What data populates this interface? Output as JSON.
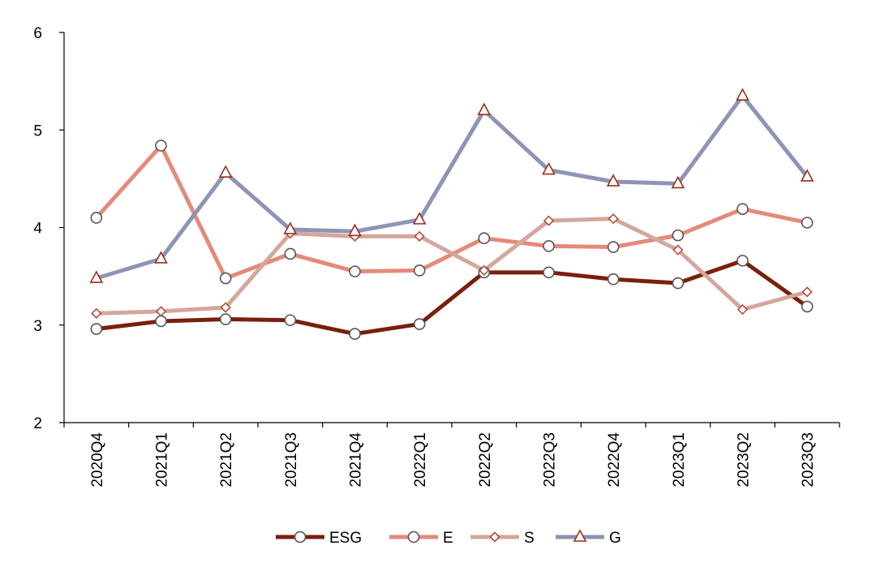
{
  "chart_data": {
    "type": "line",
    "title": "",
    "xlabel": "",
    "ylabel": "",
    "ylim": [
      2,
      6
    ],
    "yticks": [
      2,
      3,
      4,
      5,
      6
    ],
    "grid": false,
    "legend_position": "bottom",
    "categories": [
      "2020Q4",
      "2021Q1",
      "2021Q2",
      "2021Q3",
      "2021Q4",
      "2022Q1",
      "2022Q2",
      "2022Q3",
      "2022Q4",
      "2023Q1",
      "2023Q2",
      "2023Q3"
    ],
    "series": [
      {
        "name": "ESG",
        "color": "#7a1f0c",
        "marker": "circle",
        "values": [
          2.96,
          3.04,
          3.06,
          3.05,
          2.91,
          3.01,
          3.54,
          3.54,
          3.47,
          3.43,
          3.66,
          3.19
        ]
      },
      {
        "name": "E",
        "color": "#e48a78",
        "marker": "circle",
        "values": [
          4.1,
          4.84,
          3.48,
          3.73,
          3.55,
          3.56,
          3.89,
          3.81,
          3.8,
          3.92,
          4.19,
          4.05
        ]
      },
      {
        "name": "S",
        "color": "#d4a69c",
        "marker": "diamond",
        "values": [
          3.12,
          3.14,
          3.18,
          3.94,
          3.91,
          3.91,
          3.56,
          4.07,
          4.09,
          3.77,
          3.16,
          3.34
        ]
      },
      {
        "name": "G",
        "color": "#8d94b4",
        "marker": "triangle",
        "values": [
          3.48,
          3.68,
          4.56,
          3.98,
          3.96,
          4.08,
          5.2,
          4.59,
          4.47,
          4.45,
          5.35,
          4.52
        ]
      }
    ]
  }
}
